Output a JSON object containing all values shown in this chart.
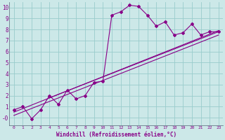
{
  "xlabel": "Windchill (Refroidissement éolien,°C)",
  "background_color": "#cce8e8",
  "line_color": "#880088",
  "grid_color": "#99cccc",
  "xlim": [
    -0.5,
    23.5
  ],
  "ylim": [
    -0.7,
    10.5
  ],
  "xticks": [
    0,
    1,
    2,
    3,
    4,
    5,
    6,
    7,
    8,
    9,
    10,
    11,
    12,
    13,
    14,
    15,
    16,
    17,
    18,
    19,
    20,
    21,
    22,
    23
  ],
  "yticks": [
    0,
    1,
    2,
    3,
    4,
    5,
    6,
    7,
    8,
    9,
    10
  ],
  "ytick_labels": [
    "-0",
    "1",
    "2",
    "3",
    "4",
    "5",
    "6",
    "7",
    "8",
    "9",
    "10"
  ],
  "line1_x": [
    0,
    1,
    2,
    3,
    4,
    5,
    6,
    7,
    8,
    9,
    10,
    11,
    12,
    13,
    14,
    15,
    16,
    17,
    18,
    19,
    20,
    21,
    22,
    23
  ],
  "line1_y": [
    0.7,
    1.0,
    -0.1,
    0.7,
    2.0,
    1.2,
    2.5,
    1.7,
    2.0,
    3.2,
    3.3,
    9.3,
    9.6,
    10.2,
    10.1,
    9.3,
    8.3,
    8.7,
    7.5,
    7.7,
    8.5,
    7.5,
    7.8,
    7.8
  ],
  "line2_x": [
    0,
    23
  ],
  "line2_y": [
    0.5,
    7.9
  ],
  "line3_x": [
    0,
    23
  ],
  "line3_y": [
    0.2,
    7.5
  ],
  "line4_x": [
    4,
    23
  ],
  "line4_y": [
    1.8,
    7.8
  ]
}
